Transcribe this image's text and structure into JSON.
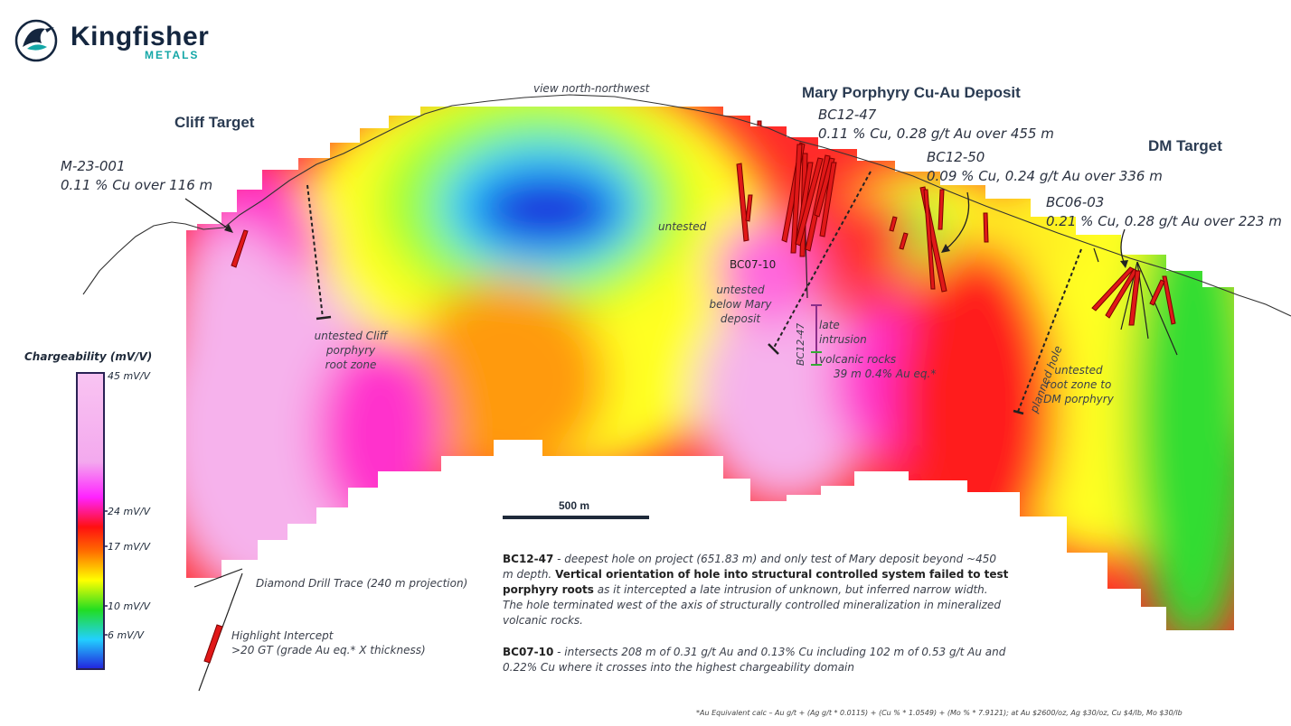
{
  "logo": {
    "name": "Kingfisher",
    "sub": "METALS"
  },
  "view_label": "view north-northwest",
  "targets": {
    "mary": "Mary Porphyry Cu-Au Deposit",
    "cliff": "Cliff Target",
    "dm": "DM Target"
  },
  "holes": {
    "m23": {
      "id": "M-23-001",
      "result": "0.11 % Cu over 116 m"
    },
    "bc1247": {
      "id": "BC12-47",
      "result": "0.11 % Cu, 0.28 g/t Au over 455 m"
    },
    "bc1250": {
      "id": "BC12-50",
      "result": "0.09 % Cu, 0.24 g/t Au over 336 m"
    },
    "bc0603": {
      "id": "BC06-03",
      "result": "0.21 % Cu, 0.28 g/t Au over 223 m"
    }
  },
  "annotations": {
    "untested": "untested",
    "bc0710": "BC07-10",
    "below_mary": [
      "untested",
      "below Mary",
      "deposit"
    ],
    "cliff_root": [
      "untested Cliff",
      "porphyry",
      "root zone"
    ],
    "late_intrusion": [
      "late",
      "intrusion"
    ],
    "volcanic": [
      "volcanic rocks",
      "39 m 0.4% Au eq.*"
    ],
    "bc1247_vertical": "BC12-47",
    "planned_hole": "planned hole",
    "dm_root": [
      "untested",
      "root zone to",
      "DM porphyry"
    ]
  },
  "legend": {
    "title": "Chargeability (mV/V)",
    "ticks": [
      "45 mV/V",
      "24 mV/V",
      "17 mV/V",
      "10 mV/V",
      "6 mV/V"
    ],
    "colors": [
      "#f7b9ee",
      "#ff22ff",
      "#ff1010",
      "#ffff00",
      "#22dd22",
      "#22d0ff",
      "#2222dd"
    ],
    "drill_trace": "Diamond Drill Trace (240 m projection)",
    "intercept": [
      "Highlight Intercept",
      ">20 GT (grade Au eq.* X thickness)"
    ]
  },
  "scale_bar": {
    "label": "500 m"
  },
  "notes": {
    "bc1247": {
      "id": "BC12-47",
      "lead": " - deepest hole on project (651.83 m) and only test of Mary deposit beyond ~450 m depth. ",
      "bold": "Vertical orientation of hole into structural controlled system failed to test porphyry roots",
      "tail": " as it intercepted a late intrusion of unknown, but inferred narrow width. The hole terminated west of the axis of structurally controlled mineralization in mineralized volcanic rocks."
    },
    "bc0710": {
      "id": "BC07-10",
      "text": " - intersects 208 m of 0.31 g/t Au and 0.13% Cu including 102 m of 0.53 g/t Au and 0.22% Cu where it crosses into the highest chargeability domain"
    }
  },
  "footer": "*Au Equivalent calc – Au g/t + (Ag g/t * 0.0115) + (Cu % * 1.0549) + (Mo % * 7.9121); at Au $2600/oz, Ag $30/oz, Cu $4/lb, Mo $30/lb"
}
